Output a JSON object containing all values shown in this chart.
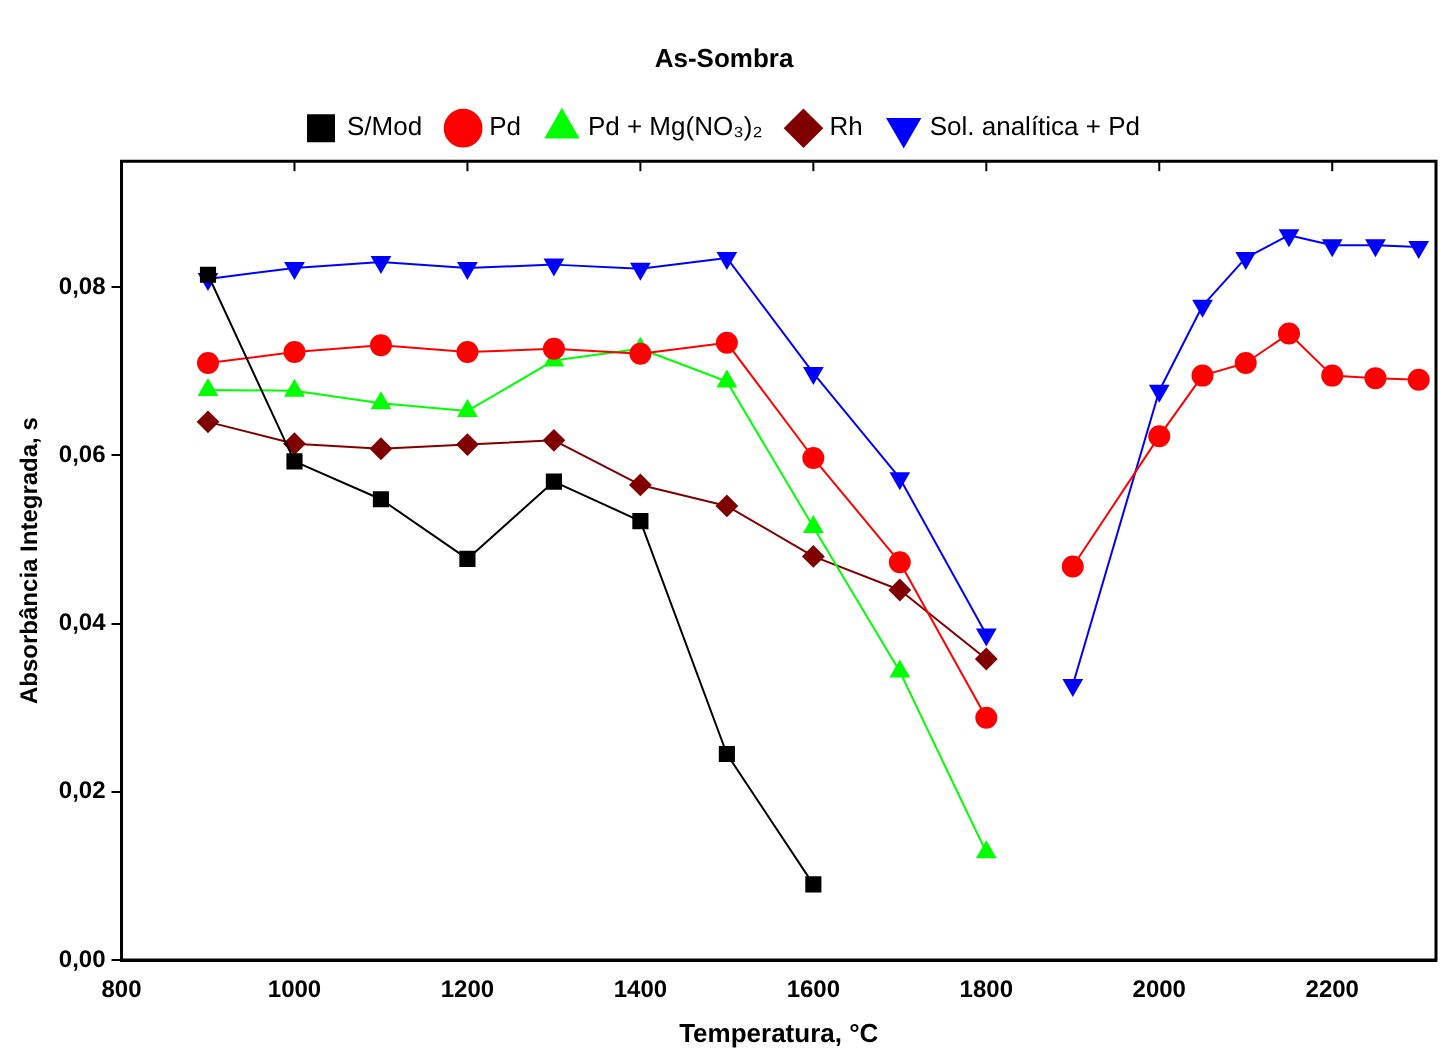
{
  "chart_data": {
    "type": "line",
    "title": "As-Sombra",
    "xlabel": "Temperatura, °C",
    "ylabel": "Absorbância Integrada, s",
    "xlim": [
      800,
      2320
    ],
    "xticks": [
      800,
      1000,
      1200,
      1400,
      1600,
      1800,
      2000,
      2200
    ],
    "ylim": [
      0,
      0.095
    ],
    "yticks": [
      {
        "value": 0,
        "label": "0,00"
      },
      {
        "value": 0.02,
        "label": "0,02"
      },
      {
        "value": 0.04,
        "label": "0,04"
      },
      {
        "value": 0.06,
        "label": "0,06"
      },
      {
        "value": 0.08,
        "label": "0,08"
      }
    ],
    "grid": false,
    "legend": "top",
    "line_style": "solid",
    "series": [
      {
        "name": "S/Mod",
        "color": "#000000",
        "marker": "square",
        "x": [
          900,
          1000,
          1100,
          1200,
          1300,
          1400,
          1500,
          1600
        ],
        "values": [
          0.0815,
          0.0593,
          0.0548,
          0.0477,
          0.0569,
          0.0522,
          0.0245,
          0.009
        ]
      },
      {
        "name": "Pd",
        "color": "#ff0000",
        "marker": "circle",
        "x": [
          900,
          1000,
          1100,
          1200,
          1300,
          1400,
          1500,
          1600,
          1700,
          1800,
          1850,
          1900,
          2000,
          2050,
          2100,
          2150,
          2200,
          2250,
          2300
        ],
        "values": [
          0.071,
          0.0723,
          0.0731,
          0.0723,
          0.0727,
          0.0721,
          0.0734,
          0.0597,
          0.0473,
          0.0288,
          null,
          0.0468,
          0.0623,
          0.0695,
          0.071,
          0.0745,
          0.0695,
          0.0692,
          0.069
        ]
      },
      {
        "name": "Pd + Mg(NO₃)₂",
        "color": "#00ff00",
        "marker": "triangle",
        "x": [
          900,
          1000,
          1100,
          1200,
          1300,
          1400,
          1500,
          1600,
          1700,
          1800
        ],
        "values": [
          0.0678,
          0.0677,
          0.0662,
          0.0653,
          0.0713,
          0.0727,
          0.0688,
          0.0515,
          0.0343,
          0.0128
        ]
      },
      {
        "name": "Rh",
        "color": "#800000",
        "marker": "diamond",
        "x": [
          900,
          1000,
          1100,
          1200,
          1300,
          1400,
          1500,
          1600,
          1700,
          1800
        ],
        "values": [
          0.064,
          0.0614,
          0.0608,
          0.0613,
          0.0618,
          0.0565,
          0.054,
          0.048,
          0.044,
          0.0358
        ]
      },
      {
        "name": "Sol. analítica + Pd",
        "color": "#0000ff",
        "marker": "triangle-down",
        "x": [
          900,
          1000,
          1100,
          1200,
          1300,
          1400,
          1500,
          1600,
          1700,
          1800,
          1850,
          1900,
          2000,
          2050,
          2100,
          2150,
          2200,
          2250,
          2300
        ],
        "values": [
          0.081,
          0.0823,
          0.083,
          0.0823,
          0.0827,
          0.0822,
          0.0835,
          0.0698,
          0.0573,
          0.0387,
          null,
          0.0327,
          0.0677,
          0.0778,
          0.0835,
          0.0862,
          0.085,
          0.085,
          0.0848
        ]
      }
    ]
  }
}
